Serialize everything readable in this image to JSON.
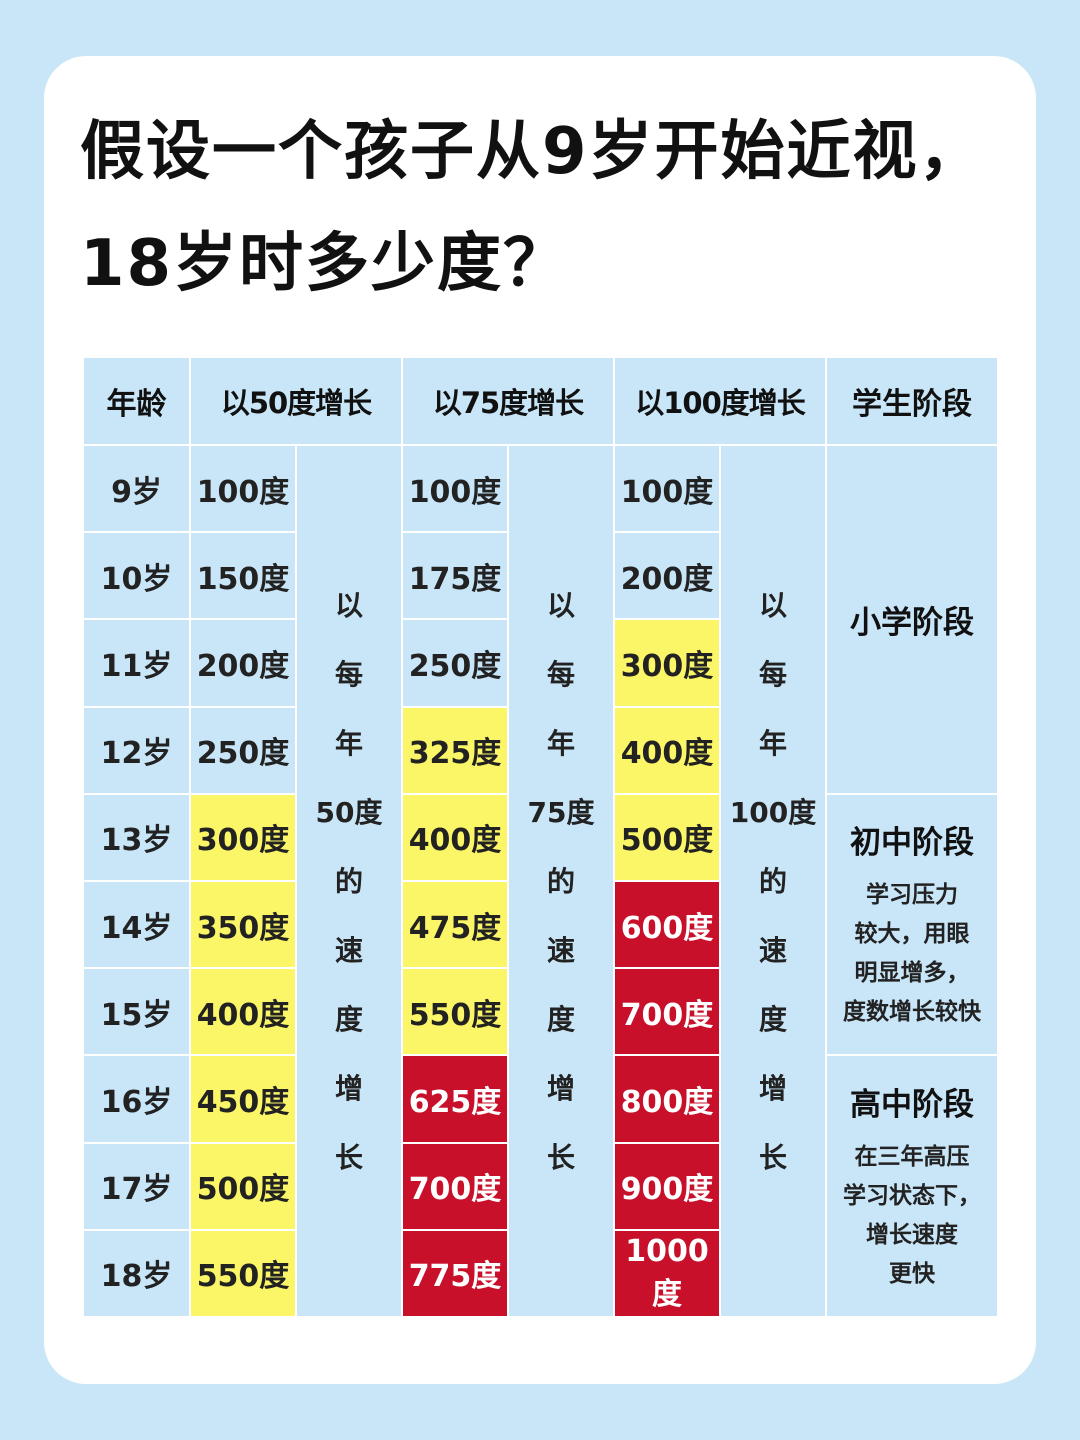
{
  "title": {
    "line1": "假设一个孩子从9岁开始近视，",
    "line2": "18岁时多少度？"
  },
  "headers": [
    "年龄",
    "以50度增长",
    "以75度增长",
    "以100度增长",
    "学生阶段"
  ],
  "ages": [
    "9岁",
    "10岁",
    "11岁",
    "12岁",
    "13岁",
    "14岁",
    "15岁",
    "16岁",
    "17岁",
    "18岁"
  ],
  "rate50": {
    "values": [
      "100度",
      "150度",
      "200度",
      "250度",
      "300度",
      "350度",
      "400度",
      "450度",
      "500度",
      "550度"
    ],
    "levels": [
      "blue",
      "blue",
      "blue",
      "blue",
      "yellow",
      "yellow",
      "yellow",
      "yellow",
      "yellow",
      "yellow"
    ],
    "note": [
      "以",
      "每",
      "年",
      "50度",
      "的",
      "速",
      "度",
      "增",
      "长"
    ]
  },
  "rate75": {
    "values": [
      "100度",
      "175度",
      "250度",
      "325度",
      "400度",
      "475度",
      "550度",
      "625度",
      "700度",
      "775度"
    ],
    "levels": [
      "blue",
      "blue",
      "blue",
      "yellow",
      "yellow",
      "yellow",
      "yellow",
      "red",
      "red",
      "red"
    ],
    "note": [
      "以",
      "每",
      "年",
      "75度",
      "的",
      "速",
      "度",
      "增",
      "长"
    ]
  },
  "rate100": {
    "values": [
      "100度",
      "200度",
      "300度",
      "400度",
      "500度",
      "600度",
      "700度",
      "800度",
      "900度",
      "1000度"
    ],
    "levels": [
      "blue",
      "blue",
      "yellow",
      "yellow",
      "yellow",
      "red",
      "red",
      "red",
      "red",
      "red"
    ],
    "note": [
      "以",
      "每",
      "年",
      "100度",
      "的",
      "速",
      "度",
      "增",
      "长"
    ]
  },
  "stages": {
    "primary": {
      "title": "小学阶段",
      "desc": []
    },
    "middle": {
      "title": "初中阶段",
      "desc": [
        "学习压力",
        "较大，用眼",
        "明显增多，",
        "度数增长较快"
      ]
    },
    "high": {
      "title": "高中阶段",
      "desc": [
        "在三年高压",
        "学习状态下，",
        "增长速度",
        "更快"
      ]
    }
  },
  "colors": {
    "background": "#c9e6f8",
    "cell": "#c9e6f8",
    "yellow": "#fbf568",
    "red": "#c8102a"
  }
}
